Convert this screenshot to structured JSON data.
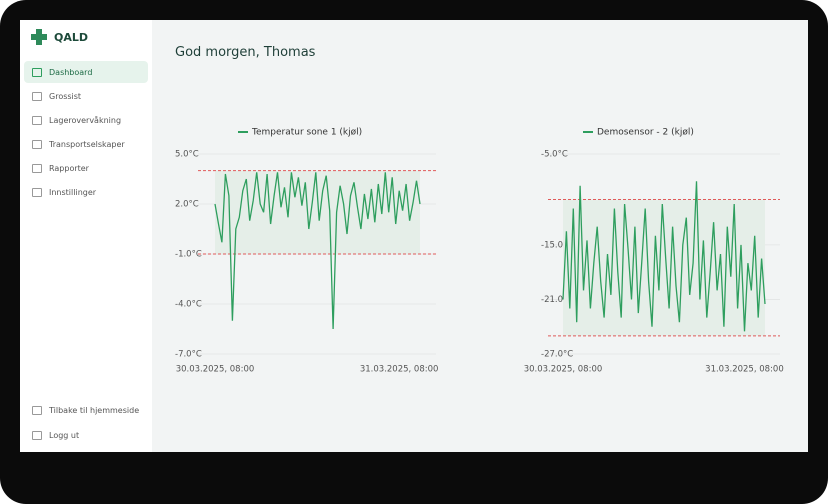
{
  "sidebar": {
    "logo": "QALD",
    "nav": [
      "Dashboard",
      "Grossist",
      "Lagerovervåkning",
      "Transportselskaper",
      "Rapporter",
      "Innstillinger"
    ],
    "active": 0,
    "footer": [
      "Tilbake til hjemmeside",
      "Logg ut"
    ]
  },
  "header": {
    "greeting": "God morgen, Thomas"
  },
  "chart_data": [
    {
      "type": "line",
      "categories": [
        "30.03.2025, 08:00",
        null,
        null,
        null,
        null,
        null,
        null,
        null,
        null,
        null,
        null,
        null,
        null,
        null,
        null,
        null,
        null,
        null,
        null,
        null,
        null,
        null,
        null,
        null,
        null,
        null,
        null,
        null,
        null,
        null,
        null,
        null,
        null,
        null,
        null,
        null,
        null,
        null,
        null,
        null,
        null,
        null,
        null,
        null,
        null,
        null,
        null,
        null,
        null,
        null,
        null,
        null,
        null,
        "31.03.2025, 08:00",
        null,
        null,
        null,
        null,
        null,
        null
      ],
      "series": [
        {
          "name": "Temperatur sone 1 (kjøl)",
          "color": "#2e9e5e",
          "values": [
            2.0,
            0.8,
            -0.3,
            3.8,
            2.5,
            -5.0,
            0.5,
            1.2,
            2.8,
            3.5,
            1.0,
            2.2,
            3.9,
            2.0,
            1.5,
            3.8,
            0.8,
            2.5,
            3.9,
            1.8,
            3.0,
            1.2,
            3.9,
            2.4,
            3.6,
            1.9,
            3.3,
            0.5,
            2.1,
            3.9,
            1.0,
            2.8,
            3.7,
            1.6,
            -5.5,
            1.5,
            3.1,
            2.0,
            0.2,
            2.5,
            3.3,
            1.8,
            0.5,
            2.6,
            1.1,
            2.9,
            0.9,
            3.2,
            1.4,
            3.9,
            1.5,
            3.6,
            0.8,
            2.8,
            1.6,
            3.2,
            1.0,
            2.1,
            3.4,
            2.0
          ]
        }
      ],
      "thresholds": [
        4,
        -1
      ],
      "threshold_color": "#e05a5a",
      "ylim": [
        -7,
        5
      ],
      "yticks": [
        {
          "value": -7,
          "label": "-7.0°C"
        },
        {
          "value": -4,
          "label": "-4.0°C"
        },
        {
          "value": -1,
          "label": "-1.0°C"
        },
        {
          "value": 2,
          "label": "2.0°C"
        },
        {
          "value": 5,
          "label": "5.0°C"
        }
      ],
      "grid": true
    },
    {
      "type": "line",
      "categories": [
        "30.03.2025, 08:00",
        null,
        null,
        null,
        null,
        null,
        null,
        null,
        null,
        null,
        null,
        null,
        null,
        null,
        null,
        null,
        null,
        null,
        null,
        null,
        null,
        null,
        null,
        null,
        null,
        null,
        null,
        null,
        null,
        null,
        null,
        null,
        null,
        null,
        null,
        null,
        null,
        null,
        null,
        null,
        null,
        null,
        null,
        null,
        null,
        null,
        null,
        null,
        null,
        null,
        null,
        null,
        null,
        "31.03.2025, 08:00",
        null,
        null,
        null,
        null,
        null,
        null
      ],
      "series": [
        {
          "name": "Demosensor - 2 (kjøl)",
          "color": "#2e9e5e",
          "values": [
            -21,
            -13.5,
            -22,
            -11,
            -23.5,
            -8.5,
            -20,
            -14.5,
            -22,
            -17,
            -13,
            -19,
            -23,
            -16,
            -20.5,
            -11,
            -18,
            -23,
            -10.5,
            -15.5,
            -21,
            -13,
            -22.5,
            -17,
            -11,
            -19,
            -24,
            -14,
            -20,
            -10.5,
            -16.5,
            -22,
            -13,
            -19.5,
            -23.5,
            -15,
            -12,
            -20.5,
            -17,
            -8,
            -21,
            -14.5,
            -23,
            -18,
            -12.5,
            -20,
            -16,
            -24,
            -13,
            -18.5,
            -10.5,
            -22,
            -15,
            -24.5,
            -17,
            -20,
            -14,
            -23,
            -16.5,
            -21.5
          ]
        }
      ],
      "thresholds": [
        -10,
        -25
      ],
      "threshold_color": "#e05a5a",
      "ylim": [
        -27,
        -5
      ],
      "yticks": [
        {
          "value": -27,
          "label": "-27.0°C"
        },
        {
          "value": -21,
          "label": "-21.0°C"
        },
        {
          "value": -15,
          "label": "-15.0°C"
        },
        {
          "value": -5,
          "label": "-5.0°C"
        }
      ],
      "grid": true
    }
  ]
}
